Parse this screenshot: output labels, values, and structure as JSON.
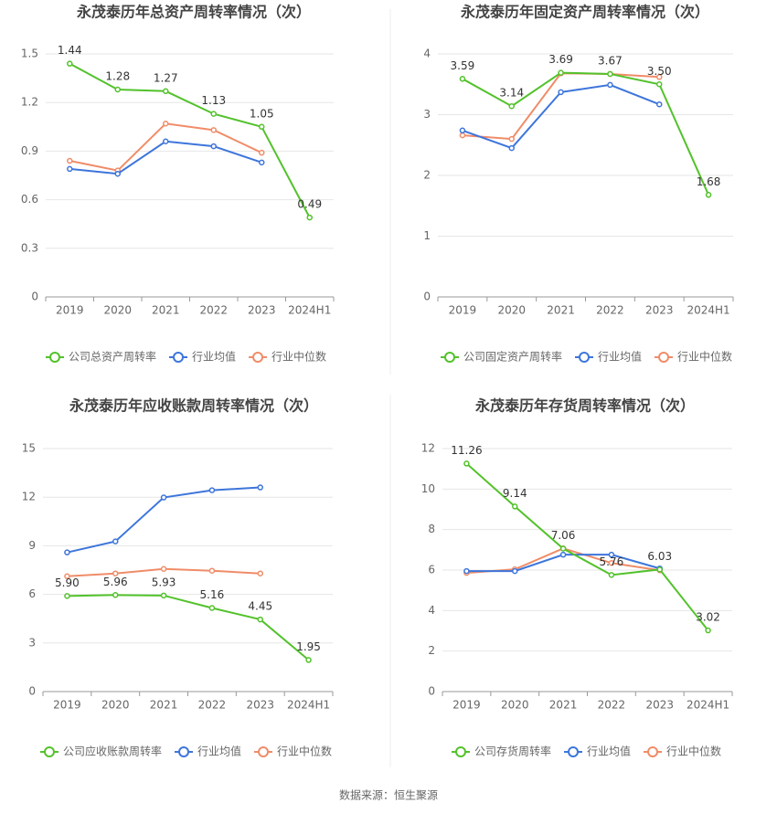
{
  "chart_data": [
    {
      "type": "line",
      "title": "永茂泰历年总资产周转率情况（次）",
      "categories": [
        "2019",
        "2020",
        "2021",
        "2022",
        "2023",
        "2024H1"
      ],
      "ylim": [
        0,
        1.5
      ],
      "yticks": [
        0,
        0.3,
        0.6,
        0.9,
        1.2,
        1.5
      ],
      "grid": true,
      "legend": "bottom",
      "series": [
        {
          "name": "公司总资产周转率",
          "color": "#52c22b",
          "values": [
            1.44,
            1.28,
            1.27,
            1.13,
            1.05,
            0.49
          ],
          "value_labels": [
            "1.44",
            "1.28",
            "1.27",
            "1.13",
            "1.05",
            "0.49"
          ]
        },
        {
          "name": "行业均值",
          "color": "#3d75db",
          "values": [
            0.79,
            0.76,
            0.96,
            0.93,
            0.83,
            null
          ]
        },
        {
          "name": "行业中位数",
          "color": "#f08c68",
          "values": [
            0.84,
            0.78,
            1.07,
            1.03,
            0.89,
            null
          ]
        }
      ]
    },
    {
      "type": "line",
      "title": "永茂泰历年固定资产周转率情况（次）",
      "categories": [
        "2019",
        "2020",
        "2021",
        "2022",
        "2023",
        "2024H1"
      ],
      "ylim": [
        0,
        4
      ],
      "yticks": [
        0,
        1,
        2,
        3,
        4
      ],
      "grid": true,
      "legend": "bottom",
      "series": [
        {
          "name": "公司固定资产周转率",
          "color": "#52c22b",
          "values": [
            3.59,
            3.14,
            3.69,
            3.67,
            3.5,
            1.68
          ],
          "value_labels": [
            "3.59",
            "3.14",
            "3.69",
            "3.67",
            "3.50",
            "1.68"
          ]
        },
        {
          "name": "行业均值",
          "color": "#3d75db",
          "values": [
            2.74,
            2.45,
            3.37,
            3.49,
            3.17,
            null
          ]
        },
        {
          "name": "行业中位数",
          "color": "#f08c68",
          "values": [
            2.66,
            2.6,
            3.68,
            3.67,
            3.62,
            null
          ]
        }
      ]
    },
    {
      "type": "line",
      "title": "永茂泰历年应收账款周转率情况（次）",
      "categories": [
        "2019",
        "2020",
        "2021",
        "2022",
        "2023",
        "2024H1"
      ],
      "ylim": [
        0,
        15
      ],
      "yticks": [
        0,
        3,
        6,
        9,
        12,
        15
      ],
      "grid": true,
      "legend": "bottom",
      "series": [
        {
          "name": "公司应收账款周转率",
          "color": "#52c22b",
          "values": [
            5.9,
            5.96,
            5.93,
            5.16,
            4.45,
            1.95
          ],
          "value_labels": [
            "5.90",
            "5.96",
            "5.93",
            "5.16",
            "4.45",
            "1.95"
          ]
        },
        {
          "name": "行业均值",
          "color": "#3d75db",
          "values": [
            8.59,
            9.27,
            11.98,
            12.43,
            12.6,
            null
          ]
        },
        {
          "name": "行业中位数",
          "color": "#f08c68",
          "values": [
            7.12,
            7.29,
            7.57,
            7.46,
            7.29,
            null
          ]
        }
      ]
    },
    {
      "type": "line",
      "title": "永茂泰历年存货周转率情况（次）",
      "categories": [
        "2019",
        "2020",
        "2021",
        "2022",
        "2023",
        "2024H1"
      ],
      "ylim": [
        0,
        12
      ],
      "yticks": [
        0,
        2,
        4,
        6,
        8,
        10,
        12
      ],
      "grid": true,
      "legend": "bottom",
      "series": [
        {
          "name": "公司存货周转率",
          "color": "#52c22b",
          "values": [
            11.26,
            9.14,
            7.06,
            5.76,
            6.03,
            3.02
          ],
          "value_labels": [
            "11.26",
            "9.14",
            "7.06",
            "5.76",
            "6.03",
            "3.02"
          ]
        },
        {
          "name": "行业均值",
          "color": "#3d75db",
          "values": [
            5.95,
            5.95,
            6.76,
            6.76,
            6.08,
            null
          ]
        },
        {
          "name": "行业中位数",
          "color": "#f08c68",
          "values": [
            5.86,
            6.04,
            7.07,
            6.35,
            5.99,
            null
          ]
        }
      ]
    }
  ],
  "source": "数据来源：恒生聚源"
}
